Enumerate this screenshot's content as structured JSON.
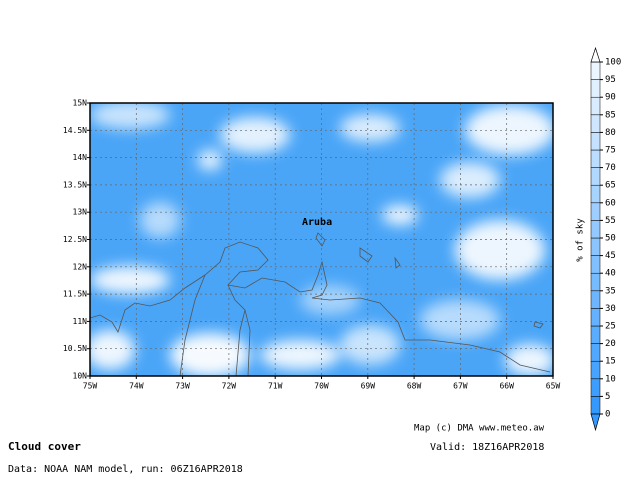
{
  "title": "Cloud cover",
  "source": "Data: NOAA NAM model, run: 06Z16APR2018",
  "credit": "Map (c) DMA www.meteo.aw",
  "valid": "Valid: 18Z16APR2018",
  "place_label": "Aruba",
  "colorbar": {
    "label": "% of sky",
    "ticks": [
      0,
      5,
      10,
      15,
      20,
      25,
      30,
      35,
      40,
      45,
      50,
      55,
      60,
      65,
      70,
      75,
      80,
      85,
      90,
      95,
      100
    ]
  },
  "map": {
    "lon_labels": [
      "75W",
      "74W",
      "73W",
      "72W",
      "71W",
      "70W",
      "69W",
      "68W",
      "67W",
      "66W",
      "65W"
    ],
    "lat_labels": [
      "15N",
      "14.5N",
      "14N",
      "13.5N",
      "13N",
      "12.5N",
      "12N",
      "11.5N",
      "11N",
      "10.5N",
      "10N"
    ]
  }
}
